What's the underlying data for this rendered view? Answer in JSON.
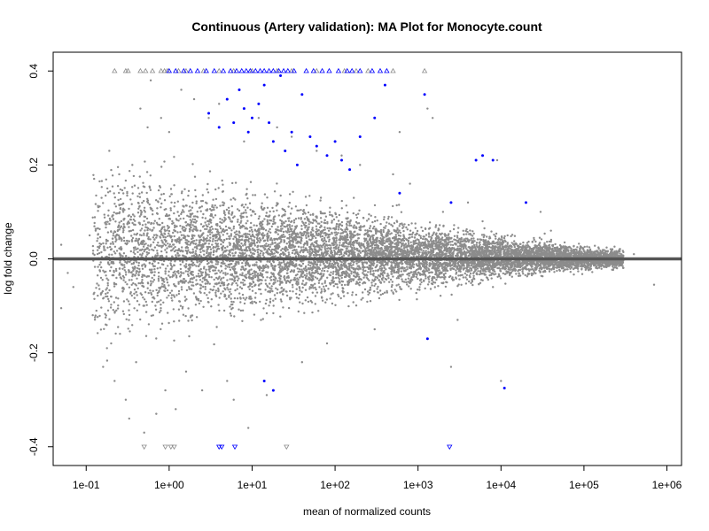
{
  "chart_data": {
    "type": "scatter",
    "title": "Continuous (Artery validation): MA Plot for Monocyte.count",
    "xlabel": "mean of normalized counts",
    "ylabel": "log fold change",
    "x_scale": "log10",
    "xlim": [
      0.04,
      1500000
    ],
    "ylim": [
      -0.44,
      0.44
    ],
    "x_ticks": [
      {
        "value": 0.1,
        "label": "1e-01"
      },
      {
        "value": 1,
        "label": "1e+00"
      },
      {
        "value": 10,
        "label": "1e+01"
      },
      {
        "value": 100,
        "label": "1e+02"
      },
      {
        "value": 1000,
        "label": "1e+03"
      },
      {
        "value": 10000,
        "label": "1e+04"
      },
      {
        "value": 100000,
        "label": "1e+05"
      },
      {
        "value": 1000000,
        "label": "1e+06"
      }
    ],
    "y_ticks": [
      {
        "value": -0.4,
        "label": "-0.4"
      },
      {
        "value": -0.2,
        "label": "-0.2"
      },
      {
        "value": 0.0,
        "label": "0.0"
      },
      {
        "value": 0.2,
        "label": "0.2"
      },
      {
        "value": 0.4,
        "label": "0.4"
      }
    ],
    "reference_line": {
      "y": 0,
      "color": "#555555"
    },
    "grid": false,
    "legend": "none",
    "colors": {
      "not_significant": "#8c8c8c",
      "significant": "#0000ff",
      "axis": "#000000"
    },
    "series": [
      {
        "group": "not significant",
        "color": "#8c8c8c",
        "points": [
          [
            0.05,
            0.03
          ],
          [
            0.05,
            -0.105
          ],
          [
            0.06,
            -0.03
          ],
          [
            0.07,
            -0.06
          ],
          [
            0.09,
            0.0
          ],
          [
            0.11,
            0.05
          ],
          [
            0.12,
            -0.12
          ],
          [
            0.13,
            0.06
          ],
          [
            0.14,
            0.11
          ],
          [
            0.16,
            -0.23
          ],
          [
            0.18,
            0.15
          ],
          [
            0.19,
            0.23
          ],
          [
            0.2,
            -0.18
          ],
          [
            0.22,
            -0.26
          ],
          [
            0.25,
            0.18
          ],
          [
            0.28,
            0.1
          ],
          [
            0.3,
            -0.3
          ],
          [
            0.33,
            -0.34
          ],
          [
            0.36,
            0.2
          ],
          [
            0.4,
            -0.22
          ],
          [
            0.45,
            0.32
          ],
          [
            0.5,
            -0.37
          ],
          [
            0.55,
            0.28
          ],
          [
            0.6,
            0.38
          ],
          [
            0.7,
            -0.33
          ],
          [
            0.8,
            0.3
          ],
          [
            0.9,
            -0.28
          ],
          [
            1.0,
            0.27
          ],
          [
            1.2,
            -0.32
          ],
          [
            1.4,
            0.36
          ],
          [
            1.6,
            -0.24
          ],
          [
            2.0,
            0.34
          ],
          [
            2.5,
            -0.28
          ],
          [
            3.0,
            0.3
          ],
          [
            4.0,
            0.33
          ],
          [
            5.0,
            -0.26
          ],
          [
            6.0,
            -0.3
          ],
          [
            8.0,
            0.25
          ],
          [
            9.0,
            -0.36
          ],
          [
            12.0,
            0.3
          ],
          [
            15.0,
            -0.29
          ],
          [
            20.0,
            0.28
          ],
          [
            30.0,
            0.26
          ],
          [
            40.0,
            -0.22
          ],
          [
            60.0,
            0.23
          ],
          [
            80.0,
            -0.18
          ],
          [
            120.0,
            0.22
          ],
          [
            200.0,
            0.2
          ],
          [
            300.0,
            -0.15
          ],
          [
            500.0,
            0.18
          ],
          [
            800.0,
            0.16
          ],
          [
            1500.0,
            0.3
          ],
          [
            2000.0,
            0.1
          ],
          [
            3000.0,
            -0.13
          ],
          [
            4000.0,
            0.12
          ],
          [
            6000.0,
            0.08
          ],
          [
            8000.0,
            -0.06
          ],
          [
            12000.0,
            0.05
          ],
          [
            20000.0,
            0.02
          ],
          [
            40000.0,
            0.06
          ],
          [
            80000.0,
            0.02
          ],
          [
            150000.0,
            0.0
          ],
          [
            250000.0,
            -0.02
          ],
          [
            400000.0,
            0.01
          ],
          [
            700000.0,
            -0.055
          ],
          [
            10000.0,
            -0.26
          ],
          [
            9000.0,
            0.21
          ],
          [
            2500.0,
            -0.23
          ],
          [
            1300.0,
            0.32
          ],
          [
            600.0,
            0.27
          ],
          [
            30000.0,
            0.1
          ]
        ]
      },
      {
        "group": "significant",
        "color": "#0000ff",
        "points": [
          [
            3.0,
            0.31
          ],
          [
            4.0,
            0.28
          ],
          [
            5.0,
            0.34
          ],
          [
            6.0,
            0.29
          ],
          [
            7.0,
            0.36
          ],
          [
            8.0,
            0.32
          ],
          [
            9.0,
            0.27
          ],
          [
            10.0,
            0.3
          ],
          [
            12.0,
            0.33
          ],
          [
            14.0,
            0.37
          ],
          [
            16.0,
            0.29
          ],
          [
            18.0,
            0.25
          ],
          [
            22.0,
            0.39
          ],
          [
            25.0,
            0.23
          ],
          [
            30.0,
            0.27
          ],
          [
            35.0,
            0.2
          ],
          [
            40.0,
            0.35
          ],
          [
            50.0,
            0.26
          ],
          [
            60.0,
            0.24
          ],
          [
            80.0,
            0.22
          ],
          [
            100.0,
            0.25
          ],
          [
            120.0,
            0.21
          ],
          [
            150.0,
            0.19
          ],
          [
            200.0,
            0.26
          ],
          [
            300.0,
            0.3
          ],
          [
            400.0,
            0.37
          ],
          [
            600.0,
            0.14
          ],
          [
            1200.0,
            0.35
          ],
          [
            2500.0,
            0.12
          ],
          [
            5000.0,
            0.21
          ],
          [
            6000.0,
            0.22
          ],
          [
            8000.0,
            0.21
          ],
          [
            20000.0,
            0.12
          ],
          [
            14.0,
            -0.26
          ],
          [
            18.0,
            -0.28
          ],
          [
            11000.0,
            -0.275
          ],
          [
            1300.0,
            -0.17
          ]
        ]
      },
      {
        "group": "not significant, clipped at upper limit",
        "color": "#8c8c8c",
        "marker": "triangle-up",
        "points": [
          [
            0.22,
            0.4
          ],
          [
            0.3,
            0.4
          ],
          [
            0.32,
            0.4
          ],
          [
            0.45,
            0.4
          ],
          [
            0.52,
            0.4
          ],
          [
            0.63,
            0.4
          ],
          [
            0.8,
            0.4
          ],
          [
            0.88,
            0.4
          ],
          [
            0.95,
            0.4
          ],
          [
            1.3,
            0.4
          ],
          [
            1.6,
            0.4
          ],
          [
            2.6,
            0.4
          ],
          [
            4.0,
            0.4
          ],
          [
            6.0,
            0.4
          ],
          [
            10.0,
            0.4
          ],
          [
            20.0,
            0.4
          ],
          [
            30.0,
            0.4
          ],
          [
            60.0,
            0.4
          ],
          [
            130.0,
            0.4
          ],
          [
            180.0,
            0.4
          ],
          [
            250.0,
            0.4
          ],
          [
            500.0,
            0.4
          ],
          [
            1200.0,
            0.4
          ]
        ]
      },
      {
        "group": "significant, clipped at upper limit",
        "color": "#0000ff",
        "marker": "triangle-up",
        "points": [
          [
            1.0,
            0.4
          ],
          [
            1.2,
            0.4
          ],
          [
            1.5,
            0.4
          ],
          [
            1.8,
            0.4
          ],
          [
            2.2,
            0.4
          ],
          [
            2.8,
            0.4
          ],
          [
            3.5,
            0.4
          ],
          [
            4.5,
            0.4
          ],
          [
            5.5,
            0.4
          ],
          [
            6.5,
            0.4
          ],
          [
            7.5,
            0.4
          ],
          [
            8.5,
            0.4
          ],
          [
            9.5,
            0.4
          ],
          [
            11.0,
            0.4
          ],
          [
            12.5,
            0.4
          ],
          [
            14.0,
            0.4
          ],
          [
            16.0,
            0.4
          ],
          [
            18.0,
            0.4
          ],
          [
            21.0,
            0.4
          ],
          [
            24.0,
            0.4
          ],
          [
            27.0,
            0.4
          ],
          [
            32.0,
            0.4
          ],
          [
            45.0,
            0.4
          ],
          [
            55.0,
            0.4
          ],
          [
            70.0,
            0.4
          ],
          [
            85.0,
            0.4
          ],
          [
            110.0,
            0.4
          ],
          [
            140.0,
            0.4
          ],
          [
            160.0,
            0.4
          ],
          [
            200.0,
            0.4
          ],
          [
            280.0,
            0.4
          ],
          [
            350.0,
            0.4
          ],
          [
            420.0,
            0.4
          ]
        ]
      },
      {
        "group": "not significant, clipped at lower limit",
        "color": "#8c8c8c",
        "marker": "triangle-down",
        "points": [
          [
            0.5,
            -0.4
          ],
          [
            0.9,
            -0.4
          ],
          [
            1.05,
            -0.4
          ],
          [
            1.15,
            -0.4
          ],
          [
            26.0,
            -0.4
          ]
        ]
      },
      {
        "group": "significant, clipped at lower limit",
        "color": "#0000ff",
        "marker": "triangle-down",
        "points": [
          [
            4.0,
            -0.4
          ],
          [
            4.3,
            -0.4
          ],
          [
            6.2,
            -0.4
          ],
          [
            2400.0,
            -0.4
          ]
        ]
      }
    ]
  }
}
